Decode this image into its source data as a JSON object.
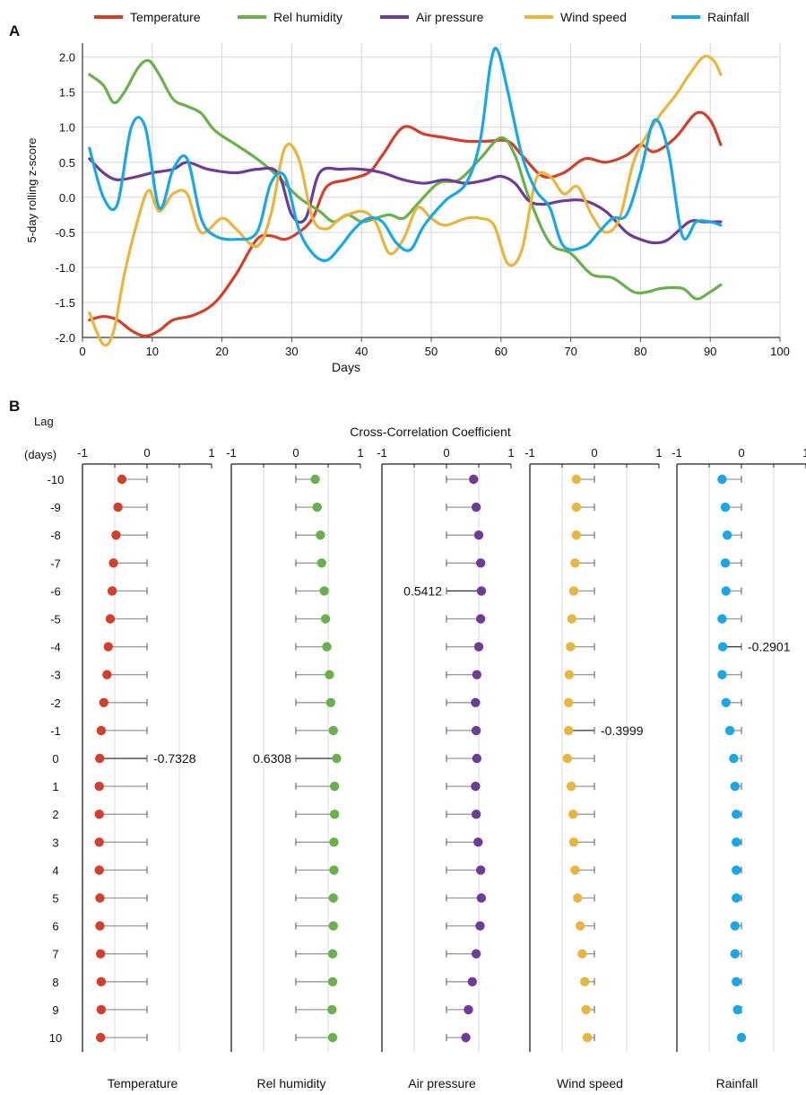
{
  "colors": {
    "Temperature": "#d23f2a",
    "Rel humidity": "#6ab04c",
    "Air pressure": "#6d3c97",
    "Wind speed": "#e8b53f",
    "Rainfall": "#1aa7e6"
  },
  "chart_data": [
    {
      "panel_label": "A",
      "type": "line",
      "xlabel": "Days",
      "ylabel": "5-day rolling z-score",
      "xlim": [
        0,
        100
      ],
      "ylim": [
        -2.0,
        2.2
      ],
      "x_ticks": [
        "0",
        "10",
        "20",
        "30",
        "40",
        "50",
        "60",
        "70",
        "80",
        "90",
        "100"
      ],
      "y_ticks": [
        "-2.0",
        "-1.5",
        "-1.0",
        "-0.5",
        "0.0",
        "0.5",
        "1.0",
        "1.5",
        "2.0"
      ],
      "grid": true,
      "legend_position": "top",
      "series": [
        {
          "name": "Temperature",
          "points": [
            [
              1,
              -1.75
            ],
            [
              3,
              -1.7
            ],
            [
              5,
              -1.75
            ],
            [
              7,
              -1.9
            ],
            [
              9,
              -1.98
            ],
            [
              11,
              -1.9
            ],
            [
              13,
              -1.75
            ],
            [
              16,
              -1.68
            ],
            [
              19,
              -1.5
            ],
            [
              22,
              -1.1
            ],
            [
              25,
              -0.6
            ],
            [
              27,
              -0.55
            ],
            [
              29,
              -0.6
            ],
            [
              31,
              -0.5
            ],
            [
              33,
              -0.3
            ],
            [
              35,
              0.15
            ],
            [
              38,
              0.25
            ],
            [
              41,
              0.35
            ],
            [
              43,
              0.6
            ],
            [
              46,
              1.0
            ],
            [
              49,
              0.9
            ],
            [
              52,
              0.85
            ],
            [
              55,
              0.8
            ],
            [
              58,
              0.8
            ],
            [
              61,
              0.8
            ],
            [
              63,
              0.6
            ],
            [
              66,
              0.3
            ],
            [
              69,
              0.35
            ],
            [
              72,
              0.55
            ],
            [
              75,
              0.5
            ],
            [
              78,
              0.6
            ],
            [
              80,
              0.75
            ],
            [
              82,
              0.65
            ],
            [
              85,
              0.85
            ],
            [
              88,
              1.2
            ],
            [
              90,
              1.1
            ],
            [
              91.5,
              0.75
            ]
          ]
        },
        {
          "name": "Rel humidity",
          "points": [
            [
              1,
              1.75
            ],
            [
              3,
              1.6
            ],
            [
              4.5,
              1.35
            ],
            [
              6,
              1.5
            ],
            [
              8,
              1.85
            ],
            [
              9.5,
              1.95
            ],
            [
              11,
              1.75
            ],
            [
              13,
              1.4
            ],
            [
              15,
              1.3
            ],
            [
              17,
              1.2
            ],
            [
              19,
              0.95
            ],
            [
              22,
              0.75
            ],
            [
              25,
              0.55
            ],
            [
              28,
              0.3
            ],
            [
              31,
              0.0
            ],
            [
              34,
              -0.2
            ],
            [
              36,
              -0.35
            ],
            [
              38,
              -0.25
            ],
            [
              40,
              -0.35
            ],
            [
              42,
              -0.3
            ],
            [
              44,
              -0.25
            ],
            [
              46,
              -0.3
            ],
            [
              48,
              -0.1
            ],
            [
              51,
              0.2
            ],
            [
              54,
              0.25
            ],
            [
              57,
              0.55
            ],
            [
              60,
              0.85
            ],
            [
              62,
              0.6
            ],
            [
              64,
              0.0
            ],
            [
              67,
              -0.65
            ],
            [
              70,
              -0.8
            ],
            [
              73,
              -1.1
            ],
            [
              76,
              -1.15
            ],
            [
              79,
              -1.35
            ],
            [
              81,
              -1.35
            ],
            [
              83,
              -1.3
            ],
            [
              86,
              -1.3
            ],
            [
              88,
              -1.45
            ],
            [
              90,
              -1.35
            ],
            [
              91.5,
              -1.25
            ]
          ]
        },
        {
          "name": "Air pressure",
          "points": [
            [
              1,
              0.55
            ],
            [
              3,
              0.35
            ],
            [
              5,
              0.25
            ],
            [
              8,
              0.3
            ],
            [
              10,
              0.35
            ],
            [
              13,
              0.4
            ],
            [
              15,
              0.5
            ],
            [
              18,
              0.4
            ],
            [
              22,
              0.35
            ],
            [
              25,
              0.4
            ],
            [
              28,
              0.35
            ],
            [
              30,
              -0.25
            ],
            [
              32,
              -0.3
            ],
            [
              34,
              0.35
            ],
            [
              37,
              0.4
            ],
            [
              40,
              0.4
            ],
            [
              43,
              0.35
            ],
            [
              46,
              0.25
            ],
            [
              49,
              0.2
            ],
            [
              52,
              0.25
            ],
            [
              55,
              0.2
            ],
            [
              58,
              0.25
            ],
            [
              60,
              0.3
            ],
            [
              62,
              0.2
            ],
            [
              64,
              -0.05
            ],
            [
              66,
              -0.1
            ],
            [
              69,
              -0.05
            ],
            [
              72,
              -0.05
            ],
            [
              75,
              -0.2
            ],
            [
              78,
              -0.5
            ],
            [
              80,
              -0.6
            ],
            [
              82,
              -0.65
            ],
            [
              84,
              -0.6
            ],
            [
              87,
              -0.35
            ],
            [
              89,
              -0.35
            ],
            [
              91.5,
              -0.35
            ]
          ]
        },
        {
          "name": "Wind speed",
          "points": [
            [
              1,
              -1.65
            ],
            [
              3,
              -2.1
            ],
            [
              4.5,
              -1.9
            ],
            [
              6,
              -1.1
            ],
            [
              8,
              -0.3
            ],
            [
              9.5,
              0.1
            ],
            [
              11,
              -0.2
            ],
            [
              13,
              0.05
            ],
            [
              15,
              0.05
            ],
            [
              17,
              -0.5
            ],
            [
              20,
              -0.3
            ],
            [
              22,
              -0.45
            ],
            [
              25,
              -0.7
            ],
            [
              27,
              -0.25
            ],
            [
              29,
              0.7
            ],
            [
              31,
              0.55
            ],
            [
              33,
              -0.3
            ],
            [
              35,
              -0.45
            ],
            [
              37,
              -0.3
            ],
            [
              40,
              -0.2
            ],
            [
              42,
              -0.35
            ],
            [
              44,
              -0.8
            ],
            [
              46,
              -0.6
            ],
            [
              48,
              -0.15
            ],
            [
              50,
              -0.3
            ],
            [
              52,
              -0.4
            ],
            [
              55,
              -0.3
            ],
            [
              57,
              -0.3
            ],
            [
              59,
              -0.4
            ],
            [
              61,
              -0.95
            ],
            [
              63,
              -0.75
            ],
            [
              65,
              0.25
            ],
            [
              67,
              0.3
            ],
            [
              69,
              0.05
            ],
            [
              71,
              0.15
            ],
            [
              73,
              -0.25
            ],
            [
              75,
              -0.5
            ],
            [
              77,
              -0.3
            ],
            [
              79,
              0.5
            ],
            [
              81,
              0.9
            ],
            [
              83,
              1.2
            ],
            [
              85,
              1.45
            ],
            [
              87,
              1.75
            ],
            [
              89,
              2.0
            ],
            [
              90.5,
              1.95
            ],
            [
              91.5,
              1.75
            ]
          ]
        },
        {
          "name": "Rainfall",
          "points": [
            [
              1,
              0.7
            ],
            [
              3,
              0.0
            ],
            [
              5,
              -0.1
            ],
            [
              7,
              1.0
            ],
            [
              9,
              1.0
            ],
            [
              11,
              -0.15
            ],
            [
              13,
              0.4
            ],
            [
              15,
              0.55
            ],
            [
              17,
              -0.3
            ],
            [
              19,
              -0.55
            ],
            [
              22,
              -0.6
            ],
            [
              25,
              -0.5
            ],
            [
              27,
              0.2
            ],
            [
              29,
              0.3
            ],
            [
              31,
              -0.45
            ],
            [
              33,
              -0.8
            ],
            [
              35,
              -0.9
            ],
            [
              37,
              -0.7
            ],
            [
              39,
              -0.45
            ],
            [
              41,
              -0.3
            ],
            [
              43,
              -0.35
            ],
            [
              45,
              -0.65
            ],
            [
              47,
              -0.75
            ],
            [
              49,
              -0.4
            ],
            [
              52,
              -0.05
            ],
            [
              55,
              0.2
            ],
            [
              57,
              0.8
            ],
            [
              58.5,
              1.9
            ],
            [
              59.5,
              2.1
            ],
            [
              61,
              1.5
            ],
            [
              63,
              0.6
            ],
            [
              65,
              0.1
            ],
            [
              67,
              -0.15
            ],
            [
              69,
              -0.7
            ],
            [
              72,
              -0.7
            ],
            [
              74,
              -0.5
            ],
            [
              76,
              -0.3
            ],
            [
              78,
              -0.25
            ],
            [
              80,
              0.35
            ],
            [
              82,
              1.1
            ],
            [
              84,
              0.65
            ],
            [
              86,
              -0.55
            ],
            [
              88,
              -0.35
            ],
            [
              90,
              -0.35
            ],
            [
              91.5,
              -0.4
            ]
          ]
        }
      ]
    },
    {
      "panel_label": "B",
      "type": "scatter",
      "title": "Cross-Correlation Coefficient",
      "ylabel_line1": "Lag",
      "ylabel_line2": "(days)",
      "lags": [
        "-10",
        "-9",
        "-8",
        "-7",
        "-6",
        "-5",
        "-4",
        "-3",
        "-2",
        "-1",
        "0",
        "1",
        "2",
        "3",
        "4",
        "5",
        "6",
        "7",
        "8",
        "9",
        "10"
      ],
      "x_ticks": [
        "-1",
        "0",
        "1"
      ],
      "xlim": [
        -1,
        1
      ],
      "series": [
        {
          "name": "Temperature",
          "annotation": "-0.7328",
          "annotation_lag": "0",
          "values": [
            -0.39,
            -0.45,
            -0.48,
            -0.52,
            -0.54,
            -0.57,
            -0.6,
            -0.62,
            -0.67,
            -0.71,
            -0.7328,
            -0.74,
            -0.74,
            -0.74,
            -0.74,
            -0.73,
            -0.73,
            -0.72,
            -0.71,
            -0.71,
            -0.72
          ]
        },
        {
          "name": "Rel humidity",
          "annotation": "0.6308",
          "annotation_lag": "0",
          "values": [
            0.3,
            0.33,
            0.38,
            0.4,
            0.44,
            0.46,
            0.48,
            0.52,
            0.54,
            0.58,
            0.6308,
            0.6,
            0.6,
            0.59,
            0.59,
            0.58,
            0.58,
            0.57,
            0.57,
            0.56,
            0.57
          ]
        },
        {
          "name": "Air pressure",
          "annotation": "0.5412",
          "annotation_lag": "-6",
          "values": [
            0.42,
            0.46,
            0.5,
            0.53,
            0.5412,
            0.53,
            0.5,
            0.47,
            0.45,
            0.46,
            0.47,
            0.45,
            0.46,
            0.49,
            0.53,
            0.54,
            0.52,
            0.46,
            0.4,
            0.34,
            0.3
          ]
        },
        {
          "name": "Wind speed",
          "annotation": "-0.3999",
          "annotation_lag": "-1",
          "values": [
            -0.28,
            -0.28,
            -0.28,
            -0.3,
            -0.32,
            -0.35,
            -0.37,
            -0.39,
            -0.4,
            -0.3999,
            -0.42,
            -0.36,
            -0.33,
            -0.32,
            -0.3,
            -0.26,
            -0.22,
            -0.19,
            -0.15,
            -0.13,
            -0.11
          ]
        },
        {
          "name": "Rainfall",
          "annotation": "-0.2901",
          "annotation_lag": "-4",
          "values": [
            -0.3,
            -0.25,
            -0.22,
            -0.25,
            -0.24,
            -0.3,
            -0.2901,
            -0.3,
            -0.24,
            -0.18,
            -0.12,
            -0.1,
            -0.08,
            -0.08,
            -0.08,
            -0.08,
            -0.1,
            -0.1,
            -0.08,
            -0.06,
            0.0
          ]
        }
      ]
    }
  ]
}
